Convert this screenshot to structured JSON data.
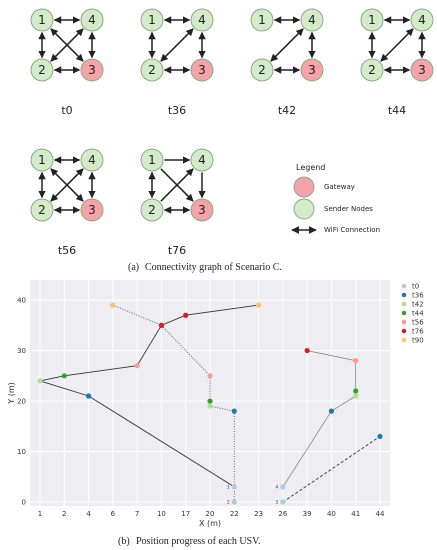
{
  "graph": {
    "legend_title": "Legend",
    "legend_gateway": "Gateway",
    "legend_sender": "Sender Nodes",
    "legend_wifi": "WiFi Connection",
    "caption_prefix": "(a)",
    "caption_text": "Connectivity graph of Scenario C.",
    "colors": {
      "gateway": "#f5a3a6",
      "sender": "#d3ebc9",
      "stroke": "#8aa989",
      "arrow": "#222222"
    },
    "snapshots": [
      {
        "label": "t0",
        "edges": [
          [
            1,
            4,
            "both"
          ],
          [
            1,
            2,
            "both"
          ],
          [
            2,
            3,
            "both"
          ],
          [
            4,
            3,
            "both"
          ],
          [
            1,
            3,
            "both"
          ],
          [
            4,
            2,
            "both"
          ]
        ]
      },
      {
        "label": "t36",
        "edges": [
          [
            1,
            4,
            "both"
          ],
          [
            1,
            2,
            "both"
          ],
          [
            2,
            3,
            "both"
          ],
          [
            4,
            3,
            "both"
          ],
          [
            4,
            2,
            "both"
          ]
        ]
      },
      {
        "label": "t42",
        "edges": [
          [
            1,
            4,
            "both"
          ],
          [
            2,
            3,
            "both"
          ],
          [
            4,
            3,
            "both"
          ],
          [
            4,
            2,
            "both"
          ]
        ]
      },
      {
        "label": "t44",
        "edges": [
          [
            1,
            4,
            "both"
          ],
          [
            1,
            2,
            "both"
          ],
          [
            2,
            3,
            "both"
          ],
          [
            4,
            3,
            "both"
          ],
          [
            4,
            2,
            "both"
          ]
        ]
      },
      {
        "label": "t56",
        "edges": [
          [
            1,
            4,
            "both"
          ],
          [
            1,
            2,
            "both"
          ],
          [
            2,
            3,
            "both"
          ],
          [
            4,
            3,
            "both"
          ],
          [
            1,
            3,
            "both"
          ],
          [
            4,
            2,
            "both"
          ]
        ]
      },
      {
        "label": "t76",
        "edges": [
          [
            1,
            4,
            "fwd"
          ],
          [
            1,
            2,
            "both"
          ],
          [
            2,
            3,
            "both"
          ],
          [
            4,
            3,
            "fwd"
          ],
          [
            1,
            3,
            "fwd"
          ],
          [
            2,
            4,
            "fwd"
          ]
        ]
      }
    ]
  },
  "chart_data": {
    "type": "scatter",
    "title": "",
    "xlabel": "X (m)",
    "ylabel": "Y (m)",
    "grid": true,
    "legend": "right",
    "x_ticks": [
      1,
      2,
      4,
      6,
      7,
      10,
      17,
      20,
      22,
      23,
      26,
      39,
      40,
      41,
      44
    ],
    "y_ticks": [
      0,
      10,
      20,
      30,
      40
    ],
    "ylim": [
      0,
      42
    ],
    "series": [
      {
        "name": "t0",
        "color": "#a6cee3"
      },
      {
        "name": "t36",
        "color": "#1f78b4"
      },
      {
        "name": "t42",
        "color": "#b2df8a"
      },
      {
        "name": "t44",
        "color": "#33a02c"
      },
      {
        "name": "t56",
        "color": "#fb9a99"
      },
      {
        "name": "t76",
        "color": "#e31a1c"
      },
      {
        "name": "t90",
        "color": "#fdbf6f"
      }
    ],
    "usvs": [
      {
        "id": "1",
        "style": "solid",
        "points": [
          [
            22,
            3
          ],
          [
            4,
            21
          ],
          [
            1,
            24
          ],
          [
            2,
            25
          ],
          [
            7,
            27
          ],
          [
            10,
            35
          ],
          [
            17,
            37
          ],
          [
            23,
            39
          ]
        ],
        "colors": [
          "#a6cee3",
          "#1f78b4",
          "#b2df8a",
          "#33a02c",
          "#fb9a99",
          "#e31a1c",
          "#e31a1c",
          "#fdbf6f"
        ]
      },
      {
        "id": "2",
        "style": "dotted",
        "points": [
          [
            22,
            0
          ],
          [
            22,
            18
          ],
          [
            20,
            19
          ],
          [
            20,
            20
          ],
          [
            20,
            25
          ],
          [
            10,
            35
          ],
          [
            6,
            39
          ]
        ],
        "colors": [
          "#a6cee3",
          "#1f78b4",
          "#b2df8a",
          "#33a02c",
          "#fb9a99",
          "#e31a1c",
          "#fdbf6f"
        ]
      },
      {
        "id": "3",
        "style": "dashed",
        "points": [
          [
            26,
            0
          ],
          [
            44,
            13
          ]
        ],
        "colors": [
          "#a6cee3",
          "#1f78b4"
        ]
      },
      {
        "id": "4",
        "style": "thin",
        "points": [
          [
            26,
            3
          ],
          [
            40,
            18
          ],
          [
            41,
            21
          ],
          [
            41,
            22
          ],
          [
            41,
            28
          ],
          [
            39,
            30
          ]
        ],
        "colors": [
          "#a6cee3",
          "#1f78b4",
          "#b2df8a",
          "#33a02c",
          "#fb9a99",
          "#e31a1c"
        ]
      }
    ],
    "caption_prefix": "(b)",
    "caption_text": "Position progress of each USV."
  }
}
